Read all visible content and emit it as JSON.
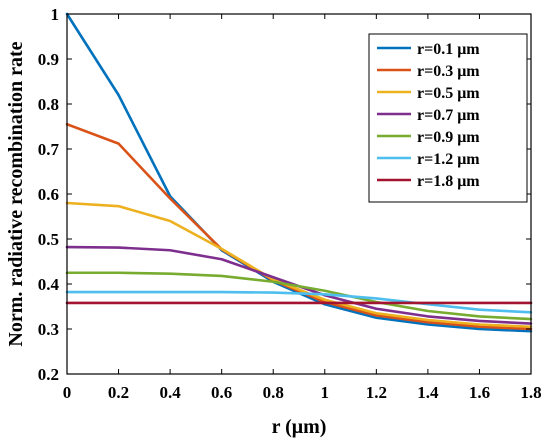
{
  "chart_data": {
    "type": "line",
    "xlabel": "r (μm)",
    "ylabel": "Norm. radiative recombination rate",
    "xlim": [
      0,
      1.8
    ],
    "ylim": [
      0.2,
      1.0
    ],
    "xticks": [
      "0",
      "0.2",
      "0.4",
      "0.6",
      "0.8",
      "1",
      "1.2",
      "1.4",
      "1.6",
      "1.8"
    ],
    "yticks": [
      "0.2",
      "0.3",
      "0.4",
      "0.5",
      "0.6",
      "0.7",
      "0.8",
      "0.9",
      "1"
    ],
    "grid": false,
    "legend_position": "top-right",
    "x": [
      0,
      0.2,
      0.4,
      0.6,
      0.8,
      1.0,
      1.2,
      1.4,
      1.6,
      1.8
    ],
    "series": [
      {
        "name": "r=0.1 μm",
        "color": "#0072BD",
        "values": [
          1.0,
          0.82,
          0.595,
          0.475,
          0.405,
          0.355,
          0.325,
          0.31,
          0.3,
          0.295
        ]
      },
      {
        "name": "r=0.3 μm",
        "color": "#D95319",
        "values": [
          0.755,
          0.712,
          0.59,
          0.477,
          0.408,
          0.36,
          0.33,
          0.315,
          0.305,
          0.3
        ]
      },
      {
        "name": "r=0.5 μm",
        "color": "#EDB120",
        "values": [
          0.58,
          0.573,
          0.54,
          0.478,
          0.41,
          0.365,
          0.335,
          0.32,
          0.31,
          0.305
        ]
      },
      {
        "name": "r=0.7 μm",
        "color": "#7E2F8E",
        "values": [
          0.482,
          0.481,
          0.475,
          0.455,
          0.415,
          0.375,
          0.345,
          0.328,
          0.318,
          0.312
        ]
      },
      {
        "name": "r=0.9 μm",
        "color": "#77AC30",
        "values": [
          0.425,
          0.425,
          0.423,
          0.418,
          0.405,
          0.385,
          0.36,
          0.34,
          0.328,
          0.322
        ]
      },
      {
        "name": "r=1.2 μm",
        "color": "#4DBEEE",
        "values": [
          0.382,
          0.382,
          0.382,
          0.382,
          0.381,
          0.377,
          0.368,
          0.355,
          0.343,
          0.337
        ]
      },
      {
        "name": "r=1.8 μm",
        "color": "#A2142F",
        "values": [
          0.358,
          0.358,
          0.358,
          0.358,
          0.358,
          0.358,
          0.358,
          0.358,
          0.358,
          0.358
        ]
      }
    ]
  }
}
